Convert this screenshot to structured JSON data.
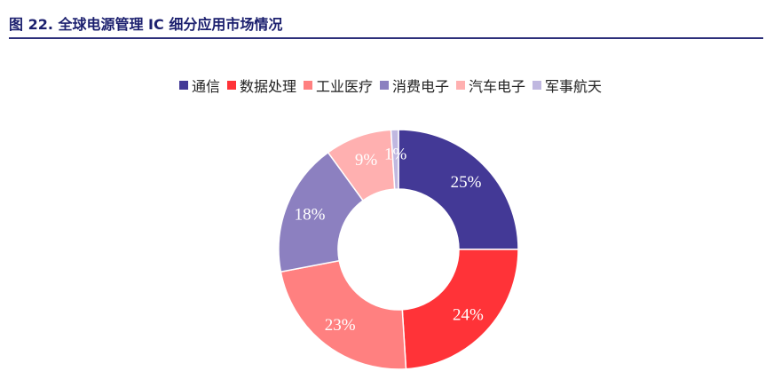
{
  "figure": {
    "title": "图 22. 全球电源管理 IC 细分应用市场情况"
  },
  "chart_data": {
    "type": "pie",
    "variant": "donut",
    "title": "",
    "legend_position": "top",
    "categories": [
      "通信",
      "数据处理",
      "工业医疗",
      "消费电子",
      "汽车电子",
      "军事航天"
    ],
    "values": [
      25,
      24,
      23,
      18,
      9,
      1
    ],
    "labels": [
      "25%",
      "24%",
      "23%",
      "18%",
      "9%",
      "1%"
    ],
    "colors": [
      "#433996",
      "#ff3338",
      "#ff8080",
      "#8c80c0",
      "#ffb0b0",
      "#c0b8e0"
    ]
  }
}
